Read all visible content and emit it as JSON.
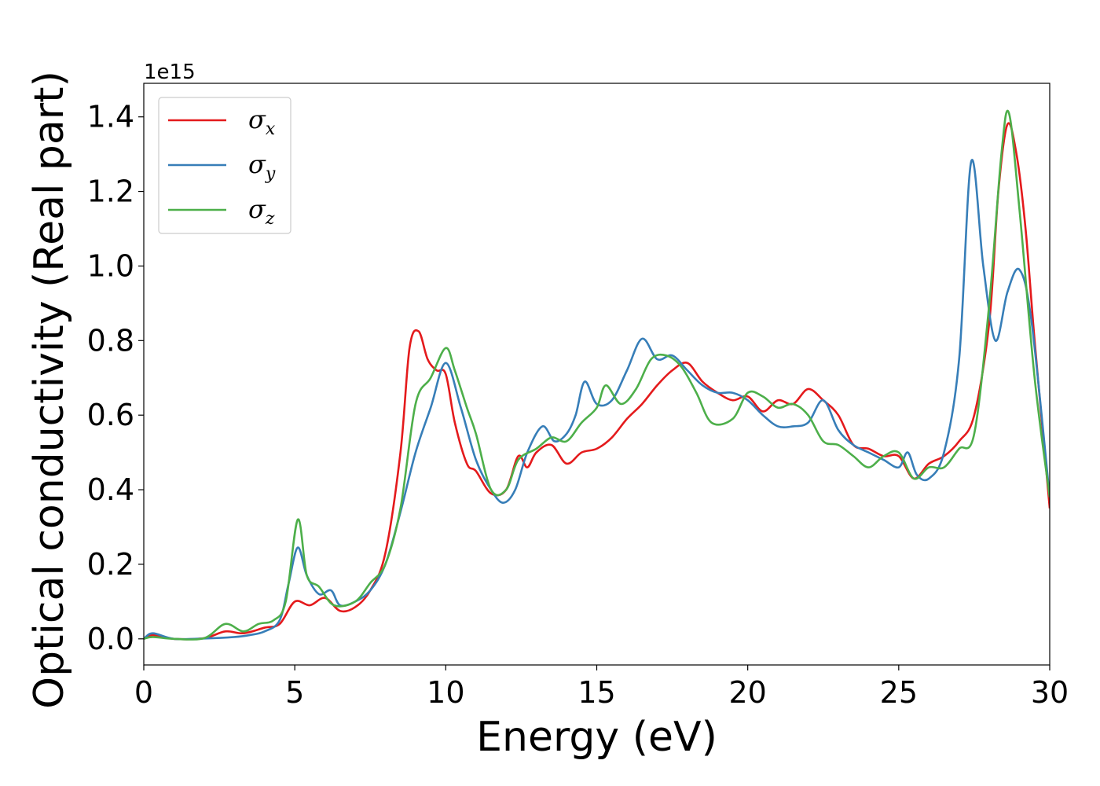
{
  "chart_data": {
    "type": "line",
    "xlabel": "Energy (eV)",
    "ylabel": "Optical conductivity (Real part)",
    "y_offset_text": "1e15",
    "xlim": [
      0,
      30
    ],
    "ylim": [
      -0.07,
      1.49
    ],
    "x_ticks": [
      0,
      5,
      10,
      15,
      20,
      25,
      30
    ],
    "x_tick_labels": [
      "0",
      "5",
      "10",
      "15",
      "20",
      "25",
      "30"
    ],
    "y_ticks": [
      0.0,
      0.2,
      0.4,
      0.6,
      0.8,
      1.0,
      1.2,
      1.4
    ],
    "y_tick_labels": [
      "0.0",
      "0.2",
      "0.4",
      "0.6",
      "0.8",
      "1.0",
      "1.2",
      "1.4"
    ],
    "grid": false,
    "legend_position": "top-left",
    "series": [
      {
        "name": "σx",
        "symbol": "σ",
        "subscript": "x",
        "color": "#e41a1c",
        "points": [
          [
            0,
            0
          ],
          [
            0.3,
            0.01
          ],
          [
            1,
            0
          ],
          [
            2,
            0.002
          ],
          [
            2.7,
            0.02
          ],
          [
            3.3,
            0.015
          ],
          [
            4,
            0.03
          ],
          [
            4.5,
            0.04
          ],
          [
            5,
            0.1
          ],
          [
            5.5,
            0.09
          ],
          [
            6,
            0.11
          ],
          [
            6.5,
            0.075
          ],
          [
            7,
            0.085
          ],
          [
            7.5,
            0.13
          ],
          [
            8,
            0.23
          ],
          [
            8.5,
            0.5
          ],
          [
            8.8,
            0.78
          ],
          [
            9.1,
            0.825
          ],
          [
            9.4,
            0.75
          ],
          [
            9.7,
            0.72
          ],
          [
            10,
            0.71
          ],
          [
            10.3,
            0.58
          ],
          [
            10.7,
            0.47
          ],
          [
            11,
            0.45
          ],
          [
            11.5,
            0.39
          ],
          [
            12,
            0.4
          ],
          [
            12.4,
            0.49
          ],
          [
            12.7,
            0.46
          ],
          [
            13,
            0.5
          ],
          [
            13.5,
            0.52
          ],
          [
            14,
            0.47
          ],
          [
            14.5,
            0.5
          ],
          [
            15,
            0.51
          ],
          [
            15.5,
            0.54
          ],
          [
            16,
            0.59
          ],
          [
            16.5,
            0.63
          ],
          [
            17,
            0.68
          ],
          [
            17.5,
            0.72
          ],
          [
            18,
            0.74
          ],
          [
            18.5,
            0.69
          ],
          [
            19,
            0.66
          ],
          [
            19.5,
            0.64
          ],
          [
            20,
            0.65
          ],
          [
            20.5,
            0.61
          ],
          [
            21,
            0.64
          ],
          [
            21.5,
            0.63
          ],
          [
            22,
            0.67
          ],
          [
            22.5,
            0.64
          ],
          [
            23,
            0.6
          ],
          [
            23.5,
            0.52
          ],
          [
            24,
            0.51
          ],
          [
            24.5,
            0.49
          ],
          [
            25,
            0.49
          ],
          [
            25.5,
            0.43
          ],
          [
            26,
            0.47
          ],
          [
            26.5,
            0.49
          ],
          [
            27,
            0.53
          ],
          [
            27.5,
            0.6
          ],
          [
            28,
            0.85
          ],
          [
            28.3,
            1.2
          ],
          [
            28.6,
            1.38
          ],
          [
            28.9,
            1.3
          ],
          [
            29.2,
            1.1
          ],
          [
            29.5,
            0.8
          ],
          [
            30,
            0.35
          ]
        ]
      },
      {
        "name": "σy",
        "symbol": "σ",
        "subscript": "y",
        "color": "#377eb8",
        "points": [
          [
            0,
            0
          ],
          [
            0.3,
            0.015
          ],
          [
            1,
            0
          ],
          [
            2,
            0.001
          ],
          [
            3,
            0.005
          ],
          [
            3.5,
            0.01
          ],
          [
            4,
            0.02
          ],
          [
            4.5,
            0.05
          ],
          [
            4.8,
            0.15
          ],
          [
            5.1,
            0.245
          ],
          [
            5.4,
            0.17
          ],
          [
            5.8,
            0.12
          ],
          [
            6.2,
            0.13
          ],
          [
            6.5,
            0.09
          ],
          [
            7,
            0.1
          ],
          [
            7.5,
            0.13
          ],
          [
            8,
            0.2
          ],
          [
            8.5,
            0.34
          ],
          [
            9,
            0.5
          ],
          [
            9.5,
            0.62
          ],
          [
            10,
            0.74
          ],
          [
            10.5,
            0.62
          ],
          [
            11,
            0.48
          ],
          [
            11.5,
            0.4
          ],
          [
            11.9,
            0.365
          ],
          [
            12.3,
            0.4
          ],
          [
            12.7,
            0.5
          ],
          [
            13.2,
            0.57
          ],
          [
            13.6,
            0.53
          ],
          [
            14,
            0.55
          ],
          [
            14.3,
            0.6
          ],
          [
            14.6,
            0.69
          ],
          [
            15,
            0.63
          ],
          [
            15.5,
            0.64
          ],
          [
            16,
            0.72
          ],
          [
            16.5,
            0.805
          ],
          [
            17,
            0.75
          ],
          [
            17.5,
            0.76
          ],
          [
            18,
            0.72
          ],
          [
            18.5,
            0.68
          ],
          [
            19,
            0.66
          ],
          [
            19.5,
            0.66
          ],
          [
            20,
            0.64
          ],
          [
            20.5,
            0.6
          ],
          [
            21,
            0.57
          ],
          [
            21.5,
            0.57
          ],
          [
            22,
            0.58
          ],
          [
            22.5,
            0.64
          ],
          [
            23,
            0.56
          ],
          [
            23.5,
            0.52
          ],
          [
            24,
            0.5
          ],
          [
            24.5,
            0.48
          ],
          [
            25,
            0.46
          ],
          [
            25.3,
            0.5
          ],
          [
            25.6,
            0.44
          ],
          [
            26,
            0.43
          ],
          [
            26.5,
            0.5
          ],
          [
            27,
            0.75
          ],
          [
            27.4,
            1.28
          ],
          [
            27.8,
            1.0
          ],
          [
            28.2,
            0.8
          ],
          [
            28.6,
            0.93
          ],
          [
            29,
            0.99
          ],
          [
            29.4,
            0.85
          ],
          [
            30,
            0.38
          ]
        ]
      },
      {
        "name": "σz",
        "symbol": "σ",
        "subscript": "z",
        "color": "#4daf4a",
        "points": [
          [
            0,
            0
          ],
          [
            0.3,
            0.005
          ],
          [
            1,
            0
          ],
          [
            2,
            0.002
          ],
          [
            2.7,
            0.04
          ],
          [
            3.3,
            0.02
          ],
          [
            3.8,
            0.04
          ],
          [
            4.3,
            0.05
          ],
          [
            4.7,
            0.1
          ],
          [
            5.1,
            0.32
          ],
          [
            5.4,
            0.17
          ],
          [
            5.8,
            0.14
          ],
          [
            6.3,
            0.09
          ],
          [
            7,
            0.1
          ],
          [
            7.5,
            0.15
          ],
          [
            8,
            0.2
          ],
          [
            8.5,
            0.35
          ],
          [
            9,
            0.63
          ],
          [
            9.5,
            0.7
          ],
          [
            10,
            0.78
          ],
          [
            10.3,
            0.72
          ],
          [
            10.7,
            0.62
          ],
          [
            11,
            0.55
          ],
          [
            11.5,
            0.4
          ],
          [
            12,
            0.4
          ],
          [
            12.4,
            0.48
          ],
          [
            13,
            0.51
          ],
          [
            13.5,
            0.54
          ],
          [
            14,
            0.53
          ],
          [
            14.5,
            0.58
          ],
          [
            15,
            0.62
          ],
          [
            15.3,
            0.68
          ],
          [
            15.8,
            0.63
          ],
          [
            16.3,
            0.67
          ],
          [
            16.8,
            0.75
          ],
          [
            17.3,
            0.76
          ],
          [
            17.8,
            0.73
          ],
          [
            18.3,
            0.66
          ],
          [
            18.8,
            0.58
          ],
          [
            19.5,
            0.59
          ],
          [
            20,
            0.66
          ],
          [
            20.5,
            0.65
          ],
          [
            21,
            0.62
          ],
          [
            21.5,
            0.63
          ],
          [
            22,
            0.6
          ],
          [
            22.5,
            0.53
          ],
          [
            23,
            0.52
          ],
          [
            23.5,
            0.49
          ],
          [
            24,
            0.46
          ],
          [
            24.5,
            0.49
          ],
          [
            25,
            0.5
          ],
          [
            25.5,
            0.43
          ],
          [
            26,
            0.46
          ],
          [
            26.5,
            0.46
          ],
          [
            27,
            0.51
          ],
          [
            27.5,
            0.55
          ],
          [
            28,
            0.9
          ],
          [
            28.4,
            1.3
          ],
          [
            28.65,
            1.41
          ],
          [
            29,
            1.15
          ],
          [
            29.5,
            0.7
          ],
          [
            30,
            0.38
          ]
        ]
      }
    ]
  }
}
